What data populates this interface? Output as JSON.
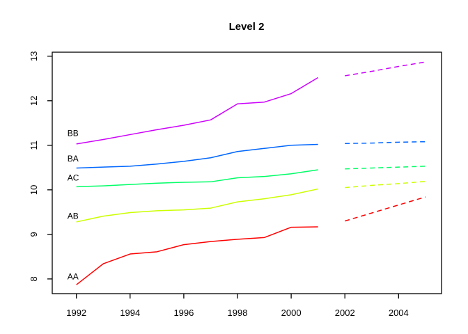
{
  "title": "Level 2",
  "chart_data": {
    "type": "line",
    "title": "Level 2",
    "xlabel": "",
    "ylabel": "",
    "grid": false,
    "legend_position": "inline-left-labels",
    "xlim": [
      1991.1,
      2005.6
    ],
    "ylim": [
      7.67,
      13.09
    ],
    "x_ticks": [
      1992,
      1994,
      1996,
      1998,
      2000,
      2002,
      2004
    ],
    "y_ticks": [
      8,
      9,
      10,
      11,
      12,
      13
    ],
    "x_solid": [
      1992,
      1993,
      1994,
      1995,
      1996,
      1997,
      1998,
      1999,
      2000,
      2001
    ],
    "x_dashed": [
      2002,
      2003,
      2004,
      2005
    ],
    "series": [
      {
        "name": "AA",
        "color": "#FF0000",
        "label_y": 8.05,
        "solid": [
          7.87,
          8.34,
          8.56,
          8.61,
          8.77,
          8.84,
          8.89,
          8.93,
          9.16,
          9.17
        ],
        "dashed": [
          9.3,
          9.48,
          9.66,
          9.84
        ]
      },
      {
        "name": "AB",
        "color": "#CCFF00",
        "label_y": 9.41,
        "solid": [
          9.28,
          9.41,
          9.49,
          9.53,
          9.55,
          9.59,
          9.73,
          9.8,
          9.89,
          10.02
        ],
        "dashed": [
          10.05,
          10.1,
          10.14,
          10.19
        ]
      },
      {
        "name": "AC",
        "color": "#00FF66",
        "label_y": 10.27,
        "solid": [
          10.07,
          10.09,
          10.12,
          10.15,
          10.17,
          10.18,
          10.27,
          10.3,
          10.36,
          10.45
        ],
        "dashed": [
          10.47,
          10.49,
          10.51,
          10.53
        ]
      },
      {
        "name": "BA",
        "color": "#0066FF",
        "label_y": 10.7,
        "solid": [
          10.49,
          10.51,
          10.53,
          10.58,
          10.64,
          10.72,
          10.86,
          10.93,
          11.0,
          11.02
        ],
        "dashed": [
          11.04,
          11.05,
          11.07,
          11.08
        ]
      },
      {
        "name": "BB",
        "color": "#CC00FF",
        "label_y": 11.27,
        "solid": [
          11.03,
          11.13,
          11.24,
          11.35,
          11.45,
          11.57,
          11.93,
          11.97,
          12.16,
          12.52
        ],
        "dashed": [
          12.56,
          12.66,
          12.77,
          12.87
        ]
      }
    ]
  }
}
